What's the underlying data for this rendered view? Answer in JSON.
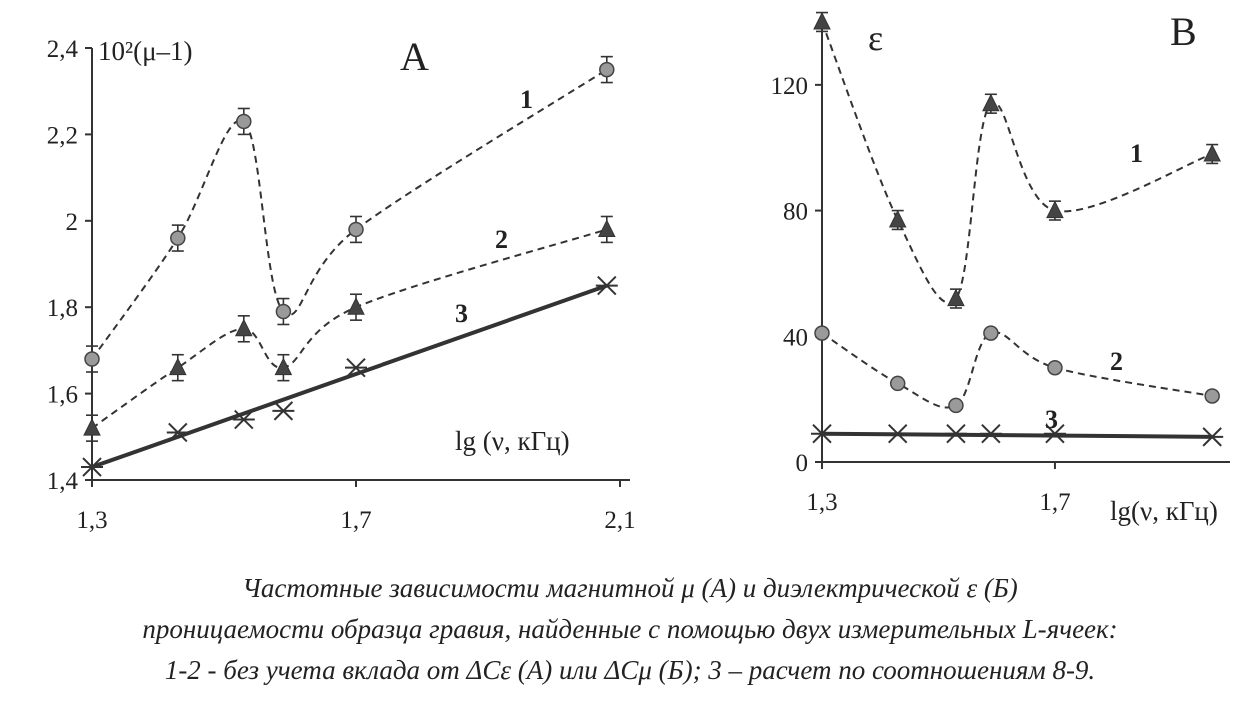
{
  "caption": {
    "line1": "Частотные зависимости магнитной μ (А) и диэлектрической ε (Б)",
    "line2": "проницаемости образца гравия, найденные с помощью двух измерительных L-ячеек:",
    "line3": "1-2 -  без учета вклада от ΔCε (А) или ΔCμ (Б); 3 – расчет по соотношениям 8-9."
  },
  "chart_data": [
    {
      "type": "line",
      "panel": "A",
      "ylabel": "10²(μ–1)",
      "xlabel": "lg (ν, кГц)",
      "xlim": [
        1.3,
        2.1
      ],
      "ylim": [
        1.4,
        2.4
      ],
      "x_ticks": [
        "1,3",
        "1,7",
        "2,1"
      ],
      "y_ticks": [
        "1,4",
        "1,6",
        "1,8",
        "2",
        "2,2",
        "2,4"
      ],
      "x_tick_values": [
        1.3,
        1.7,
        2.1
      ],
      "y_tick_values": [
        1.4,
        1.6,
        1.8,
        2.0,
        2.2,
        2.4
      ],
      "x": [
        1.3,
        1.43,
        1.53,
        1.59,
        1.7,
        2.08
      ],
      "series": [
        {
          "name": "1",
          "marker": "circle",
          "style": "dashed",
          "error": 0.03,
          "values": [
            1.68,
            1.96,
            2.23,
            1.79,
            1.98,
            2.35
          ]
        },
        {
          "name": "2",
          "marker": "triangle",
          "style": "dashed",
          "error": 0.03,
          "values": [
            1.52,
            1.66,
            1.75,
            1.66,
            1.8,
            1.98
          ]
        },
        {
          "name": "3",
          "marker": "star",
          "style": "solid",
          "error": 0,
          "values": [
            1.43,
            1.51,
            1.54,
            1.56,
            1.66,
            1.85
          ]
        }
      ]
    },
    {
      "type": "line",
      "panel": "B",
      "ylabel": "ε",
      "xlabel": "lg(ν, кГц)",
      "xlim": [
        1.3,
        1.98
      ],
      "ylim": [
        0,
        140
      ],
      "x_ticks": [
        "1,3",
        "1,7"
      ],
      "y_ticks": [
        "0",
        "40",
        "80",
        "120"
      ],
      "x_tick_values": [
        1.3,
        1.7
      ],
      "y_tick_values": [
        0,
        40,
        80,
        120
      ],
      "x": [
        1.3,
        1.43,
        1.53,
        1.59,
        1.7,
        1.97
      ],
      "series": [
        {
          "name": "1",
          "marker": "circle",
          "style": "dashed",
          "error": 0,
          "values": [
            41,
            25,
            18,
            41,
            30,
            21
          ]
        },
        {
          "name": "2",
          "marker": "triangle",
          "style": "dashed",
          "error": 3,
          "values": [
            140,
            77,
            52,
            114,
            80,
            98
          ]
        },
        {
          "name": "3",
          "marker": "star",
          "style": "solid",
          "error": 0,
          "values": [
            9,
            9,
            9,
            9,
            9,
            8
          ]
        }
      ]
    }
  ]
}
